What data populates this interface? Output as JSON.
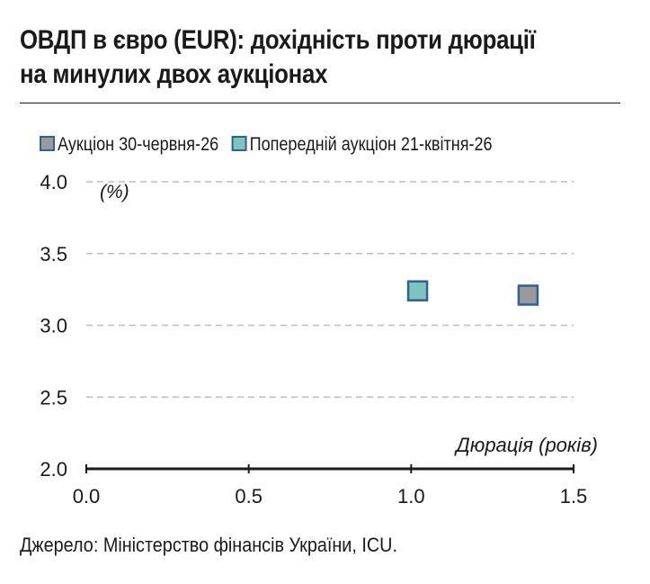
{
  "title_lines": [
    "ОВДП в євро (EUR): дохідність проти дюрації",
    "на минулих двох аукціонах"
  ],
  "source": "Джерело: Міністерство фінансів України, ICU.",
  "colors": {
    "series_current": "#9a9a9a",
    "series_previous": "#7dc4bd",
    "marker_edge": "#2e5f9e",
    "grid": "#bdbdbd",
    "axis": "#1a1a1a"
  },
  "chart_data": {
    "type": "scatter",
    "xlabel": "Дюрація (років)",
    "ylabel": "(%)",
    "xlim": [
      0.0,
      1.5
    ],
    "ylim": [
      2.0,
      4.0
    ],
    "x_ticks": [
      "0.0",
      "0.5",
      "1.0",
      "1.5"
    ],
    "y_ticks": [
      "2.0",
      "2.5",
      "3.0",
      "3.5",
      "4.0"
    ],
    "grid": "horizontal dashed",
    "legend_position": "top-left",
    "series": [
      {
        "name": "Аукціон 30-червня-26",
        "color": "#9a9a9a",
        "points": [
          {
            "x": 1.36,
            "y": 3.21
          }
        ]
      },
      {
        "name": "Попередній аукціон 21-квітня-26",
        "color": "#7dc4bd",
        "points": [
          {
            "x": 1.02,
            "y": 3.24
          }
        ]
      }
    ]
  }
}
